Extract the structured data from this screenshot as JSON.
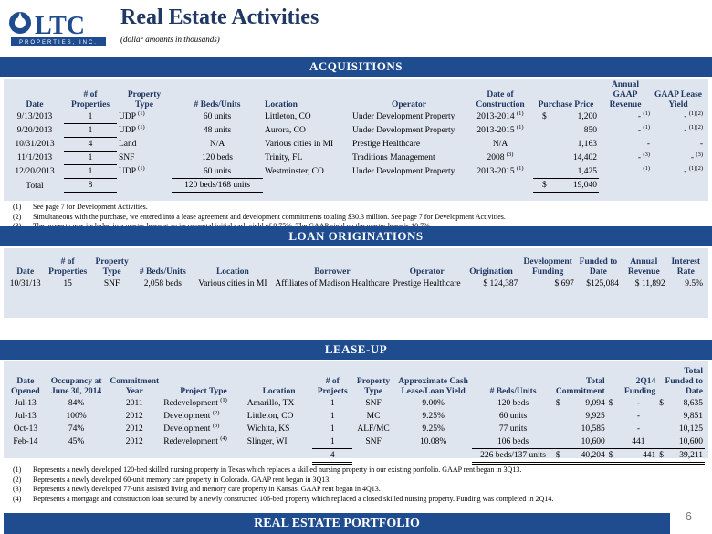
{
  "header": {
    "logo_text": "LTC",
    "logo_tagline": "PROPERTIES, INC.",
    "title": "Real Estate Activities",
    "subtitle": "(dollar amounts in thousands)"
  },
  "acquisitions": {
    "section_title": "ACQUISITIONS",
    "headers": {
      "date": "Date",
      "properties": "# of Properties",
      "type": "Property Type",
      "beds": "# Beds/Units",
      "location": "Location",
      "operator": "Operator",
      "construction": "Date of Construction",
      "price": "Purchase Price",
      "revenue": "Annual GAAP Revenue",
      "yield": "GAAP Lease Yield"
    },
    "rows": [
      {
        "date": "9/13/2013",
        "properties": "1",
        "type": "UDP",
        "type_note": "(1)",
        "beds": "60 units",
        "location": "Littleton, CO",
        "operator": "Under Development Property",
        "construction": "2013-2014",
        "construction_note": "(1)",
        "price_sym": "$",
        "price": "1,200",
        "revenue": "-",
        "revenue_note": "(1)",
        "yield": "-",
        "yield_note": "(1)(2)"
      },
      {
        "date": "9/20/2013",
        "properties": "1",
        "type": "UDP",
        "type_note": "(1)",
        "beds": "48 units",
        "location": "Aurora, CO",
        "operator": "Under Development Property",
        "construction": "2013-2015",
        "construction_note": "(1)",
        "price_sym": "",
        "price": "850",
        "revenue": "-",
        "revenue_note": "(1)",
        "yield": "-",
        "yield_note": "(1)(2)"
      },
      {
        "date": "10/31/2013",
        "properties": "4",
        "type": "Land",
        "type_note": "",
        "beds": "N/A",
        "location": "Various cities in MI",
        "operator": "Prestige Healthcare",
        "construction": "N/A",
        "construction_note": "",
        "price_sym": "",
        "price": "1,163",
        "revenue": "-",
        "revenue_note": "",
        "yield": "-",
        "yield_note": ""
      },
      {
        "date": "11/1/2013",
        "properties": "1",
        "type": "SNF",
        "type_note": "",
        "beds": "120 beds",
        "location": "Trinity, FL",
        "operator": "Traditions Management",
        "construction": "2008",
        "construction_note": "(3)",
        "price_sym": "",
        "price": "14,402",
        "revenue": "-",
        "revenue_note": "(3)",
        "yield": "-",
        "yield_note": "(3)"
      },
      {
        "date": "12/20/2013",
        "properties": "1",
        "type": "UDP",
        "type_note": "(1)",
        "beds": "60 units",
        "location": "Westminster, CO",
        "operator": "Under Development Property",
        "construction": "2013-2015",
        "construction_note": "(1)",
        "price_sym": "",
        "price": "1,425",
        "revenue": "",
        "revenue_note": "(1)",
        "yield": "-",
        "yield_note": "(1)(2)"
      }
    ],
    "total": {
      "label": "Total",
      "properties": "8",
      "beds": "120 beds/168 units",
      "price_sym": "$",
      "price": "19,040"
    },
    "notes": [
      {
        "n": "(1)",
        "text": "See page 7 for Development Activities."
      },
      {
        "n": "(2)",
        "text": "Simultaneous with the purchase, we entered into a lease agreement and development commitments totaling $30.3 million. See page 7 for Development Activities."
      },
      {
        "n": "(3)",
        "text": "The property was included in a master lease at an incremental initial cash yield of 8.75%. The GAAP yield on the master lease is 10.7%."
      }
    ]
  },
  "loans": {
    "section_title": "LOAN ORIGINATIONS",
    "headers": {
      "date": "Date",
      "properties": "# of Properties",
      "type": "Property Type",
      "beds": "# Beds/Units",
      "location": "Location",
      "borrower": "Borrower",
      "operator": "Operator",
      "origination": "Origination",
      "dev": "Development Funding",
      "funded": "Funded to Date",
      "revenue": "Annual Revenue",
      "rate": "Interest Rate"
    },
    "row": {
      "date": "10/31/13",
      "properties": "15",
      "type": "SNF",
      "beds": "2,058 beds",
      "location": "Various cities in MI",
      "borrower": "Affiliates of Madison Healthcare",
      "operator": "Prestige Healthcare",
      "origination": "$ 124,387",
      "dev": "$ 697",
      "funded": "$125,084",
      "revenue": "$ 11,892",
      "rate": "9.5%"
    }
  },
  "leaseup": {
    "section_title": "LEASE-UP",
    "headers": {
      "opened": "Date Opened",
      "occupancy": "Occupancy at June 30, 2014",
      "commit_year": "Commitment Year",
      "project_type": "Project Type",
      "location": "Location",
      "projects": "# of Projects",
      "type": "Property Type",
      "yield": "Approximate Cash Lease/Loan Yield",
      "beds": "# Beds/Units",
      "commitment": "Total Commitment",
      "funding": "2Q14 Funding",
      "funded": "Total Funded to Date"
    },
    "rows": [
      {
        "opened": "Jul-13",
        "occupancy": "84%",
        "year": "2011",
        "project_type": "Redevelopment",
        "note": "(1)",
        "location": "Amarillo, TX",
        "projects": "1",
        "type": "SNF",
        "yield": "9.00%",
        "beds": "120 beds",
        "c_sym": "$",
        "commitment": "9,094",
        "f_sym": "$",
        "funding": "-",
        "t_sym": "$",
        "funded": "8,635"
      },
      {
        "opened": "Jul-13",
        "occupancy": "100%",
        "year": "2012",
        "project_type": "Development",
        "note": "(2)",
        "location": "Littleton, CO",
        "projects": "1",
        "type": "MC",
        "yield": "9.25%",
        "beds": "60 units",
        "c_sym": "",
        "commitment": "9,925",
        "f_sym": "",
        "funding": "-",
        "t_sym": "",
        "funded": "9,851"
      },
      {
        "opened": "Oct-13",
        "occupancy": "74%",
        "year": "2012",
        "project_type": "Development",
        "note": "(3)",
        "location": "Wichita, KS",
        "projects": "1",
        "type": "ALF/MC",
        "yield": "9.25%",
        "beds": "77 units",
        "c_sym": "",
        "commitment": "10,585",
        "f_sym": "",
        "funding": "-",
        "t_sym": "",
        "funded": "10,125"
      },
      {
        "opened": "Feb-14",
        "occupancy": "45%",
        "year": "2012",
        "project_type": "Redevelopment",
        "note": "(4)",
        "location": "Slinger, WI",
        "projects": "1",
        "type": "SNF",
        "yield": "10.08%",
        "beds": "106 beds",
        "c_sym": "",
        "commitment": "10,600",
        "f_sym": "",
        "funding": "441",
        "t_sym": "",
        "funded": "10,600"
      }
    ],
    "total": {
      "projects": "4",
      "beds": "226 beds/137 units",
      "c_sym": "$",
      "commitment": "40,204",
      "f_sym": "$",
      "funding": "441",
      "t_sym": "$",
      "funded": "39,211"
    },
    "notes": [
      {
        "n": "(1)",
        "text": "Represents a newly developed 120-bed skilled nursing property in Texas which replaces a skilled nursing property in our existing portfolio.  GAAP rent began in 3Q13."
      },
      {
        "n": "(2)",
        "text": "Represents a newly developed 60-unit memory care property in Colorado.  GAAP rent began in 3Q13."
      },
      {
        "n": "(3)",
        "text": "Represents a newly developed 77-unit assisted living and memory care property in Kansas.  GAAP rent began in 4Q13."
      },
      {
        "n": "(4)",
        "text": "Represents a mortgage and construction loan secured by a newly constructed 106-bed property which replaced a closed skilled nursing property.  Funding was completed in 2Q14."
      }
    ]
  },
  "footer": {
    "bottom_title": "REAL ESTATE PORTFOLIO",
    "page_number": "6"
  },
  "colors": {
    "navy": "#1f4c8f",
    "band": "#dfe5ee",
    "title": "#1f3864"
  }
}
